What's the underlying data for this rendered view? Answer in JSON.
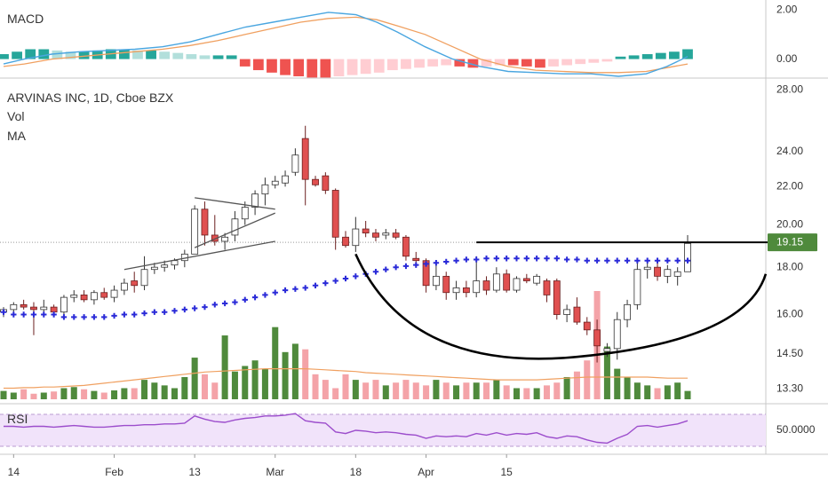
{
  "chart_data": [
    {
      "type": "line",
      "pane": "macd",
      "label": "MACD",
      "y_ticks": [
        "2.00",
        "0.00"
      ],
      "ylim": [
        -0.7,
        2.4
      ],
      "x": [
        0,
        3,
        7,
        11,
        15,
        19,
        23,
        27,
        31,
        35,
        39,
        43,
        47,
        51,
        54,
        57,
        61,
        65,
        69,
        73,
        77,
        81,
        85,
        89,
        93,
        96,
        99
      ],
      "macd": [
        -0.2,
        0.0,
        0.2,
        0.3,
        0.35,
        0.4,
        0.5,
        0.7,
        1.0,
        1.3,
        1.5,
        1.7,
        1.9,
        1.8,
        1.5,
        1.1,
        0.5,
        0.0,
        -0.3,
        -0.5,
        -0.55,
        -0.6,
        -0.6,
        -0.7,
        -0.6,
        -0.3,
        0.1
      ],
      "signal": [
        -0.3,
        -0.2,
        0.0,
        0.1,
        0.2,
        0.3,
        0.4,
        0.55,
        0.75,
        1.0,
        1.25,
        1.5,
        1.65,
        1.7,
        1.6,
        1.35,
        1.0,
        0.5,
        0.0,
        -0.3,
        -0.45,
        -0.5,
        -0.55,
        -0.55,
        -0.5,
        -0.35,
        -0.2
      ],
      "histogram": [
        0.2,
        0.3,
        0.4,
        0.4,
        0.35,
        0.3,
        0.3,
        0.35,
        0.4,
        0.4,
        0.35,
        0.35,
        0.3,
        0.25,
        0.2,
        0.15,
        0.15,
        0.15,
        -0.3,
        -0.45,
        -0.55,
        -0.65,
        -0.7,
        -0.75,
        -0.75,
        -0.7,
        -0.65,
        -0.6,
        -0.55,
        -0.45,
        -0.4,
        -0.35,
        -0.3,
        -0.25,
        -0.3,
        -0.35,
        -0.3,
        -0.25,
        -0.25,
        -0.3,
        -0.35,
        -0.3,
        -0.25,
        -0.2,
        -0.15,
        -0.1,
        0.1,
        0.15,
        0.2,
        0.25,
        0.3,
        0.4
      ],
      "colors": {
        "macd": "#4aa6e0",
        "signal": "#f0a060",
        "hist_up": "#26a69a",
        "hist_up_light": "#b2dfdb",
        "hist_down": "#ef5350",
        "hist_down_light": "#ffcdd2"
      }
    },
    {
      "type": "candlestick",
      "pane": "price",
      "title": "ARVINAS INC, 1D, Cboe BZX",
      "indicators": [
        "Vol",
        "MA"
      ],
      "y_ticks": [
        "28.00",
        "24.00",
        "22.00",
        "20.00",
        "18.00",
        "16.00",
        "14.50",
        "13.30"
      ],
      "ylim": [
        12.9,
        28.7
      ],
      "scale": "log",
      "last_price": "19.15",
      "x_ticks": [
        "14",
        "Feb",
        "13",
        "Mar",
        "18",
        "Apr",
        "15"
      ],
      "x_tick_index": [
        1,
        11,
        19,
        27,
        35,
        42,
        50
      ],
      "candles": [
        [
          16.1,
          16.3,
          15.9,
          16.2
        ],
        [
          16.2,
          16.5,
          16.0,
          16.4
        ],
        [
          16.4,
          16.6,
          16.2,
          16.3
        ],
        [
          16.3,
          16.5,
          15.2,
          16.2
        ],
        [
          16.2,
          16.6,
          15.9,
          16.3
        ],
        [
          16.3,
          16.4,
          16.0,
          16.1
        ],
        [
          16.1,
          16.8,
          16.0,
          16.7
        ],
        [
          16.7,
          17.0,
          16.5,
          16.8
        ],
        [
          16.8,
          17.0,
          16.5,
          16.6
        ],
        [
          16.6,
          17.0,
          16.4,
          16.9
        ],
        [
          16.9,
          17.1,
          16.6,
          16.7
        ],
        [
          16.7,
          17.2,
          16.5,
          17.0
        ],
        [
          17.0,
          17.5,
          16.8,
          17.3
        ],
        [
          17.4,
          17.8,
          16.9,
          17.2
        ],
        [
          17.2,
          18.5,
          17.0,
          17.9
        ],
        [
          17.9,
          18.2,
          17.7,
          18.0
        ],
        [
          18.0,
          18.3,
          17.8,
          18.1
        ],
        [
          18.1,
          18.4,
          17.9,
          18.3
        ],
        [
          18.3,
          18.8,
          18.0,
          18.6
        ],
        [
          18.6,
          21.0,
          18.6,
          20.8
        ],
        [
          20.8,
          21.2,
          19.0,
          19.5
        ],
        [
          19.5,
          20.5,
          19.0,
          19.2
        ],
        [
          19.2,
          19.6,
          18.8,
          19.4
        ],
        [
          19.5,
          20.7,
          19.2,
          20.3
        ],
        [
          20.3,
          21.2,
          20.0,
          20.9
        ],
        [
          20.9,
          21.8,
          20.5,
          21.6
        ],
        [
          21.6,
          22.5,
          21.0,
          22.1
        ],
        [
          22.1,
          22.6,
          21.9,
          22.3
        ],
        [
          22.2,
          22.9,
          22.0,
          22.6
        ],
        [
          22.8,
          24.2,
          22.6,
          23.8
        ],
        [
          24.8,
          25.6,
          21.0,
          22.4
        ],
        [
          22.4,
          22.6,
          22.0,
          22.1
        ],
        [
          22.6,
          22.8,
          21.6,
          21.8
        ],
        [
          21.8,
          21.9,
          18.8,
          19.4
        ],
        [
          19.4,
          19.7,
          18.9,
          19.0
        ],
        [
          19.0,
          20.4,
          18.7,
          19.8
        ],
        [
          19.8,
          20.2,
          19.4,
          19.6
        ],
        [
          19.6,
          19.8,
          19.2,
          19.4
        ],
        [
          19.5,
          19.8,
          19.3,
          19.6
        ],
        [
          19.6,
          19.8,
          19.3,
          19.4
        ],
        [
          19.4,
          19.5,
          18.3,
          18.5
        ],
        [
          18.4,
          18.7,
          18.1,
          18.3
        ],
        [
          18.3,
          18.4,
          16.9,
          17.2
        ],
        [
          17.2,
          18.2,
          17.0,
          17.6
        ],
        [
          17.6,
          17.8,
          16.6,
          16.9
        ],
        [
          16.9,
          17.4,
          16.6,
          17.1
        ],
        [
          17.1,
          17.4,
          16.7,
          16.9
        ],
        [
          16.9,
          18.5,
          16.7,
          17.4
        ],
        [
          17.4,
          17.6,
          16.8,
          17.0
        ],
        [
          17.0,
          18.0,
          16.9,
          17.7
        ],
        [
          17.7,
          17.9,
          16.9,
          17.0
        ],
        [
          17.0,
          17.6,
          16.9,
          17.5
        ],
        [
          17.5,
          17.7,
          17.3,
          17.4
        ],
        [
          17.3,
          17.7,
          17.2,
          17.6
        ],
        [
          17.4,
          17.5,
          16.5,
          16.8
        ],
        [
          17.4,
          17.5,
          15.8,
          16.0
        ],
        [
          16.0,
          16.4,
          15.7,
          16.2
        ],
        [
          16.3,
          16.7,
          15.6,
          15.7
        ],
        [
          15.7,
          15.9,
          15.2,
          15.4
        ],
        [
          15.4,
          15.8,
          14.2,
          14.8
        ],
        [
          14.6,
          14.9,
          14.4,
          14.7
        ],
        [
          14.7,
          16.1,
          14.3,
          15.8
        ],
        [
          15.8,
          16.6,
          15.5,
          16.4
        ],
        [
          16.4,
          18.3,
          16.2,
          17.9
        ],
        [
          17.9,
          18.4,
          17.5,
          18.0
        ],
        [
          18.0,
          18.2,
          17.4,
          17.6
        ],
        [
          17.6,
          18.1,
          17.3,
          17.9
        ],
        [
          17.6,
          18.0,
          17.2,
          17.8
        ],
        [
          17.8,
          19.5,
          17.8,
          19.1
        ]
      ],
      "ma": [
        16.1,
        16.0,
        16.0,
        16.0,
        16.0,
        16.0,
        15.9,
        15.9,
        15.9,
        15.9,
        15.9,
        15.95,
        16.0,
        16.0,
        16.05,
        16.1,
        16.1,
        16.15,
        16.2,
        16.25,
        16.3,
        16.4,
        16.45,
        16.5,
        16.6,
        16.7,
        16.8,
        16.9,
        17.0,
        17.05,
        17.1,
        17.2,
        17.3,
        17.4,
        17.5,
        17.6,
        17.7,
        17.8,
        17.9,
        18.0,
        18.05,
        18.1,
        18.15,
        18.2,
        18.25,
        18.3,
        18.35,
        18.35,
        18.4,
        18.4,
        18.4,
        18.4,
        18.4,
        18.4,
        18.4,
        18.4,
        18.35,
        18.35,
        18.3,
        18.3,
        18.3,
        18.3,
        18.3,
        18.3,
        18.3,
        18.3,
        18.3,
        18.3,
        18.3
      ],
      "volume": [
        0.15,
        0.12,
        0.18,
        0.1,
        0.12,
        0.14,
        0.2,
        0.22,
        0.18,
        0.15,
        0.12,
        0.16,
        0.2,
        0.2,
        0.35,
        0.3,
        0.25,
        0.2,
        0.4,
        0.75,
        0.45,
        0.3,
        1.15,
        0.5,
        0.6,
        0.7,
        0.55,
        1.3,
        0.85,
        1.0,
        0.9,
        0.45,
        0.35,
        0.2,
        0.45,
        0.35,
        0.3,
        0.35,
        0.25,
        0.3,
        0.35,
        0.3,
        0.25,
        0.35,
        0.3,
        0.25,
        0.3,
        0.3,
        0.3,
        0.35,
        0.25,
        0.2,
        0.2,
        0.2,
        0.25,
        0.3,
        0.4,
        0.5,
        0.7,
        1.95,
        0.95,
        0.55,
        0.4,
        0.3,
        0.25,
        0.2,
        0.25,
        0.3,
        0.15
      ],
      "volume_ma": [
        0.2,
        0.2,
        0.21,
        0.21,
        0.22,
        0.22,
        0.23,
        0.24,
        0.25,
        0.27,
        0.29,
        0.31,
        0.33,
        0.35,
        0.37,
        0.39,
        0.41,
        0.43,
        0.45,
        0.47,
        0.49,
        0.5,
        0.51,
        0.52,
        0.53,
        0.54,
        0.55,
        0.55,
        0.55,
        0.55,
        0.55,
        0.54,
        0.53,
        0.52,
        0.51,
        0.5,
        0.48,
        0.47,
        0.46,
        0.45,
        0.44,
        0.43,
        0.42,
        0.41,
        0.4,
        0.39,
        0.38,
        0.37,
        0.36,
        0.35,
        0.35,
        0.35,
        0.35,
        0.35,
        0.36,
        0.37,
        0.38,
        0.39,
        0.4,
        0.4,
        0.4,
        0.4,
        0.4,
        0.4,
        0.4,
        0.39,
        0.38,
        0.38,
        0.38
      ],
      "colors": {
        "up": "#ffffff",
        "up_border": "#333333",
        "down": "#e05050",
        "down_border": "#6b1f1f",
        "ma": "#2a2ad8",
        "vol_up": "#4f8a3c",
        "vol_down": "#f4a3a8",
        "vol_ma": "#f0a060",
        "pattern_line": "#000000",
        "trend_line": "#555555",
        "last_price_bg": "#4f8a3c"
      },
      "drawings": {
        "triangle": [
          [
            19,
            18.9,
            27,
            20.6
          ],
          [
            19,
            21.4,
            27,
            20.8
          ],
          [
            12,
            17.9,
            27,
            19.2
          ]
        ],
        "neckline": [
          [
            47,
            19.15,
            75,
            19.15
          ]
        ],
        "cup_left_index": 35,
        "cup_bottom_index": 57,
        "cup_right_index": 74,
        "cup_left_price": 18.6,
        "cup_bottom_price": 14.4,
        "cup_right_price": 17.7
      }
    },
    {
      "type": "line",
      "pane": "rsi",
      "label": "RSI",
      "y_ticks": [
        "50.0000"
      ],
      "ylim": [
        20,
        80
      ],
      "upper": 70,
      "lower": 30,
      "values": [
        55,
        55,
        54,
        55,
        55,
        54,
        55,
        56,
        55,
        54,
        54,
        55,
        56,
        56,
        57,
        57,
        58,
        58,
        59,
        68,
        64,
        61,
        60,
        63,
        65,
        66,
        68,
        68,
        69,
        71,
        62,
        60,
        59,
        48,
        46,
        50,
        49,
        47,
        48,
        47,
        45,
        44,
        40,
        43,
        42,
        43,
        42,
        46,
        44,
        47,
        44,
        46,
        45,
        47,
        42,
        40,
        43,
        42,
        38,
        35,
        34,
        40,
        45,
        55,
        56,
        54,
        56,
        58,
        62
      ],
      "colors": {
        "line": "#9c4dcc",
        "band": "#f1e3fa"
      }
    }
  ]
}
